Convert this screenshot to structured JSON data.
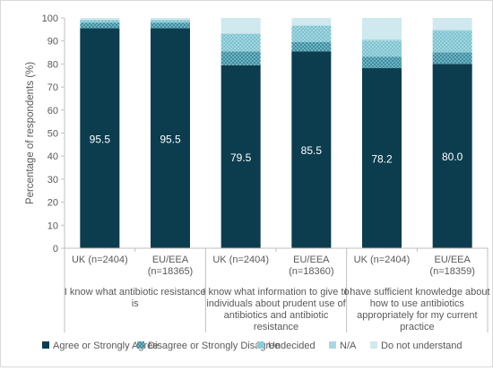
{
  "chart_data": {
    "type": "bar",
    "stacked": true,
    "ylabel": "Percentage of respondents (%)",
    "ylim": [
      0,
      100
    ],
    "yticks": [
      0,
      10,
      20,
      30,
      40,
      50,
      60,
      70,
      80,
      90,
      100
    ],
    "grid": false,
    "legend_position": "bottom",
    "groups": [
      {
        "label": "I know what antibiotic resistance is",
        "lines": [
          "I know what antibiotic resistance",
          "is"
        ]
      },
      {
        "label": "I know what information to give to individuals about prudent use of antibiotics and antibiotic resistance",
        "lines": [
          "I know what information to give to",
          "individuals about prudent use of",
          "antibiotics and antibiotic",
          "resistance"
        ]
      },
      {
        "label": "I have sufficient knowledge about how to use antibiotics appropriately for my current practice",
        "lines": [
          "I have sufficient knowledge about",
          "how to use antibiotics",
          "appropriately for my current",
          "practice"
        ]
      }
    ],
    "categories": [
      {
        "label": "UK (n=2404)",
        "lines": [
          "UK (n=2404)"
        ],
        "group": 0
      },
      {
        "label": "EU/EEA (n=18365)",
        "lines": [
          "EU/EEA",
          "(n=18365)"
        ],
        "group": 0
      },
      {
        "label": "UK (n=2404)",
        "lines": [
          "UK (n=2404)"
        ],
        "group": 1
      },
      {
        "label": "EU/EEA (n=18360)",
        "lines": [
          "EU/EEA",
          "(n=18360)"
        ],
        "group": 1
      },
      {
        "label": "UK (n=2404)",
        "lines": [
          "UK (n=2404)"
        ],
        "group": 2
      },
      {
        "label": "EU/EEA (n=18359)",
        "lines": [
          "EU/EEA",
          "(n=18359)"
        ],
        "group": 2
      }
    ],
    "series": [
      {
        "name": "Agree or Strongly Agree",
        "color": "#0b3d4f",
        "pattern": "solid",
        "values": [
          95.5,
          95.5,
          79.5,
          85.5,
          78.2,
          80.0
        ],
        "data_labels": [
          "95.5",
          "95.5",
          "79.5",
          "85.5",
          "78.2",
          "80.0"
        ]
      },
      {
        "name": "Disagree or Strongly Disagree",
        "color": "#3a8fa3",
        "pattern": "dots",
        "values": [
          2.5,
          2.5,
          6.0,
          4.0,
          5.0,
          5.0
        ]
      },
      {
        "name": "Undecided",
        "color": "#7cc3d0",
        "pattern": "dots",
        "values": [
          1.0,
          1.0,
          7.5,
          7.0,
          7.0,
          9.5
        ]
      },
      {
        "name": "N/A",
        "color": "#a7d8e0",
        "pattern": "solid",
        "values": [
          0.3,
          0.3,
          0.3,
          0.3,
          0.5,
          0.3
        ]
      },
      {
        "name": "Do not understand",
        "color": "#cfe9ee",
        "pattern": "solid",
        "values": [
          0.7,
          0.7,
          6.7,
          3.2,
          9.3,
          5.2
        ]
      }
    ]
  }
}
